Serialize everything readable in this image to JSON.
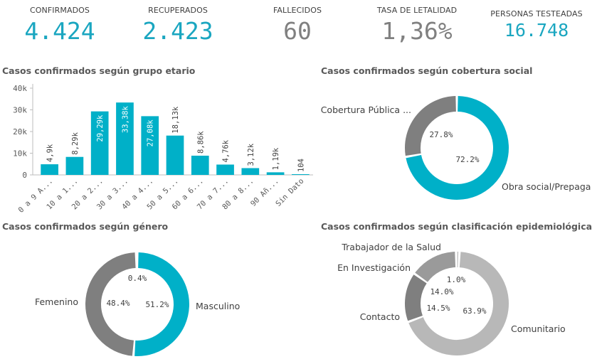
{
  "kpis": [
    {
      "label": "CONFIRMADOS",
      "value": "4.424",
      "color": "#1aa6c0"
    },
    {
      "label": "RECUPERADOS",
      "value": "2.423",
      "color": "#1aa6c0"
    },
    {
      "label": "FALLECIDOS",
      "value": "60",
      "color": "#808080"
    },
    {
      "label": "TASA DE LETALIDAD",
      "value": "1,36%",
      "color": "#808080"
    },
    {
      "label": "PERSONAS TESTEADAS",
      "value": "16.748",
      "color": "#1aa6c0"
    }
  ],
  "colors": {
    "teal": "#00b0c8",
    "gray_dark": "#7f7f7f",
    "gray_mid": "#9a9a9a",
    "gray_light": "#b8b8b8"
  },
  "chart_data": [
    {
      "type": "bar",
      "title": "Casos confirmados según grupo etario",
      "categories": [
        "0 a 9 A...",
        "10 a 1...",
        "20 a 2...",
        "30 a 3...",
        "40 a 4...",
        "50 a 5...",
        "60 a 6...",
        "70 a 7...",
        "80 a 8...",
        "90 Añ...",
        "Sin Dato"
      ],
      "values": [
        4900,
        8290,
        29290,
        33380,
        27080,
        18130,
        8860,
        4760,
        3120,
        1190,
        104
      ],
      "value_labels": [
        "4,9k",
        "8,29k",
        "29,29k",
        "33,38k",
        "27,08k",
        "18,13k",
        "8,86k",
        "4,76k",
        "3,12k",
        "1,19k",
        "104"
      ],
      "yticks": [
        0,
        10000,
        20000,
        30000,
        40000
      ],
      "ytick_labels": [
        "0",
        "10k",
        "20k",
        "30k",
        "40k"
      ],
      "ylim": [
        0,
        40000
      ],
      "grid": false
    },
    {
      "type": "pie",
      "title": "Casos confirmados según cobertura social",
      "slices": [
        {
          "label": "Obra social/Prepaga",
          "value": 72.2,
          "pct": "72.2%",
          "color": "#00b0c8"
        },
        {
          "label": "Cobertura Pública ...",
          "value": 27.8,
          "pct": "27.8%",
          "color": "#7f7f7f"
        }
      ]
    },
    {
      "type": "pie",
      "title": "Casos confirmados según género",
      "slices": [
        {
          "label": "Masculino",
          "value": 51.2,
          "pct": "51.2%",
          "color": "#00b0c8"
        },
        {
          "label": "Femenino",
          "value": 48.4,
          "pct": "48.4%",
          "color": "#7f7f7f"
        },
        {
          "label": "",
          "value": 0.4,
          "pct": "0.4%",
          "color": "#b8b8b8"
        }
      ]
    },
    {
      "type": "pie",
      "title": "Casos confirmados según clasificación epidemiológica",
      "slices": [
        {
          "label": "Comunitario",
          "value": 63.9,
          "pct": "63.9%",
          "color": "#b8b8b8"
        },
        {
          "label": "Contacto",
          "value": 14.5,
          "pct": "14.5%",
          "color": "#7f7f7f"
        },
        {
          "label": "En Investigación",
          "value": 14.0,
          "pct": "14.0%",
          "color": "#9a9a9a"
        },
        {
          "label": "Trabajador de la Salud",
          "value": 1.0,
          "pct": "1.0%",
          "color": "#c4c4c4"
        }
      ]
    }
  ]
}
